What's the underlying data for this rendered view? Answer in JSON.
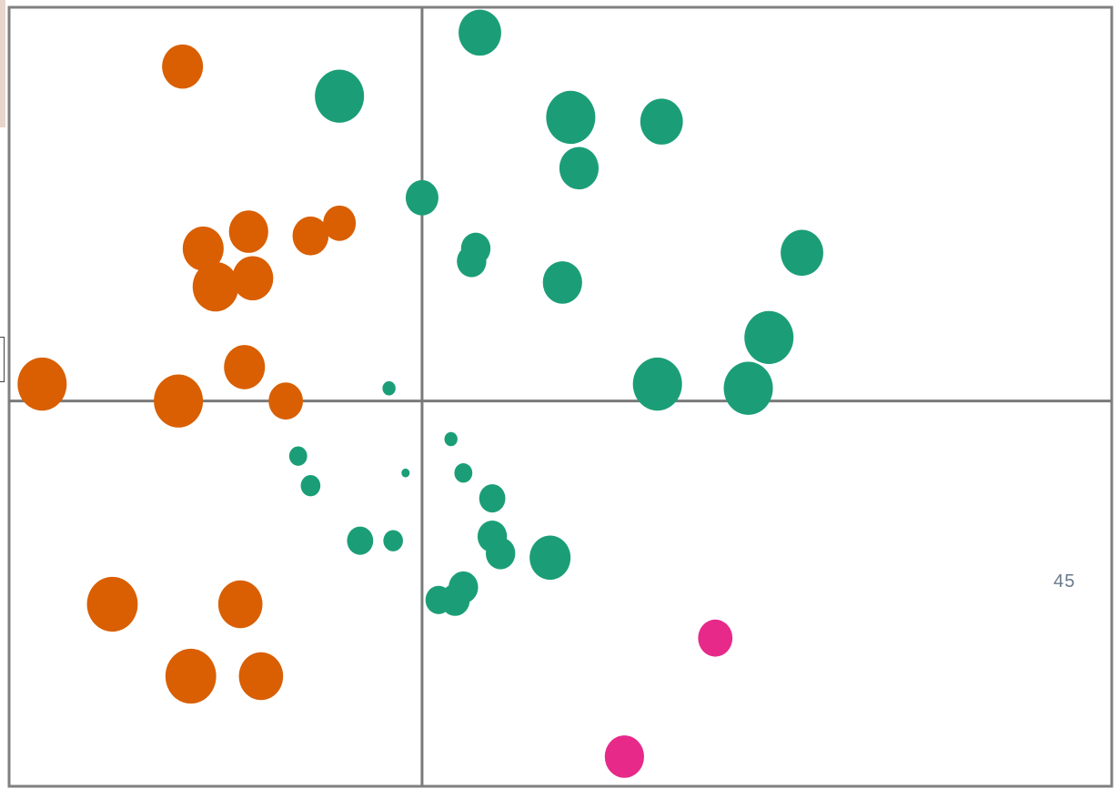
{
  "chart_data": {
    "type": "scatter",
    "title": "",
    "xlabel": "",
    "ylabel": "",
    "grid": false,
    "legend": "none",
    "xlim": [
      -100,
      167
    ],
    "ylim": [
      -91,
      93
    ],
    "axes_cross": [
      0,
      0
    ],
    "corner_label": "45",
    "colors": {
      "orange": "#d95f02",
      "green": "#1b9e77",
      "pink": "#e7298a",
      "frame": "#808080",
      "axis": "#7a7a7a"
    },
    "series": [
      {
        "color_key": "orange",
        "points": [
          {
            "x": -58,
            "y": 79,
            "size": 5.0
          },
          {
            "x": -42,
            "y": 40,
            "size": 4.8
          },
          {
            "x": -27,
            "y": 39,
            "size": 4.4
          },
          {
            "x": -20,
            "y": 42,
            "size": 4.0
          },
          {
            "x": -53,
            "y": 36,
            "size": 5.0
          },
          {
            "x": -50,
            "y": 27,
            "size": 5.6
          },
          {
            "x": -41,
            "y": 29,
            "size": 5.0
          },
          {
            "x": -92,
            "y": 4,
            "size": 6.0
          },
          {
            "x": -59,
            "y": 0,
            "size": 6.0
          },
          {
            "x": -43,
            "y": 8,
            "size": 5.0
          },
          {
            "x": -33,
            "y": 0,
            "size": 4.2
          },
          {
            "x": -75,
            "y": -48,
            "size": 6.2
          },
          {
            "x": -44,
            "y": -48,
            "size": 5.4
          },
          {
            "x": -56,
            "y": -65,
            "size": 6.2
          },
          {
            "x": -39,
            "y": -65,
            "size": 5.4
          }
        ]
      },
      {
        "color_key": "green",
        "points": [
          {
            "x": 14,
            "y": 87,
            "size": 5.2
          },
          {
            "x": -20,
            "y": 72,
            "size": 6.0
          },
          {
            "x": 36,
            "y": 67,
            "size": 6.0
          },
          {
            "x": 58,
            "y": 66,
            "size": 5.2
          },
          {
            "x": 38,
            "y": 55,
            "size": 4.8
          },
          {
            "x": 0,
            "y": 48,
            "size": 4.0
          },
          {
            "x": 13,
            "y": 36,
            "size": 3.6
          },
          {
            "x": 12,
            "y": 33,
            "size": 3.6
          },
          {
            "x": 34,
            "y": 28,
            "size": 4.8
          },
          {
            "x": 92,
            "y": 35,
            "size": 5.2
          },
          {
            "x": 84,
            "y": 15,
            "size": 6.0
          },
          {
            "x": 57,
            "y": 4,
            "size": 6.0
          },
          {
            "x": 79,
            "y": 3,
            "size": 6.0
          },
          {
            "x": -8,
            "y": 3,
            "size": 1.6
          },
          {
            "x": -30,
            "y": -13,
            "size": 2.2
          },
          {
            "x": -27,
            "y": -20,
            "size": 2.4
          },
          {
            "x": -4,
            "y": -17,
            "size": 1.0
          },
          {
            "x": 7,
            "y": -9,
            "size": 1.6
          },
          {
            "x": 10,
            "y": -17,
            "size": 2.2
          },
          {
            "x": 17,
            "y": -23,
            "size": 3.2
          },
          {
            "x": -15,
            "y": -33,
            "size": 3.2
          },
          {
            "x": -7,
            "y": -33,
            "size": 2.4
          },
          {
            "x": 17,
            "y": -32,
            "size": 3.6
          },
          {
            "x": 19,
            "y": -36,
            "size": 3.6
          },
          {
            "x": 31,
            "y": -37,
            "size": 5.0
          },
          {
            "x": 10,
            "y": -44,
            "size": 3.6
          },
          {
            "x": 8,
            "y": -47,
            "size": 3.6
          },
          {
            "x": 4,
            "y": -47,
            "size": 3.2
          }
        ]
      },
      {
        "color_key": "pink",
        "points": [
          {
            "x": 71,
            "y": -56,
            "size": 4.2
          },
          {
            "x": 49,
            "y": -84,
            "size": 4.8
          }
        ]
      }
    ]
  }
}
